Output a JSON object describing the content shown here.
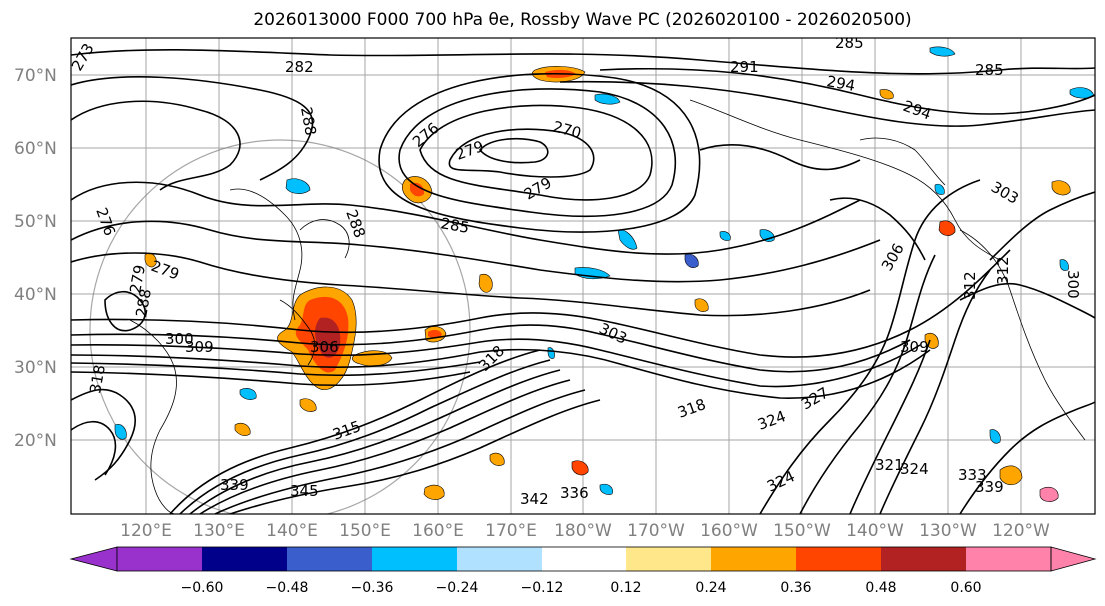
{
  "title": "2026013000 F000 700 hPa θe, Rossby Wave PC (2026020100 - 2026020500)",
  "map": {
    "lat_labels": [
      "70°N",
      "60°N",
      "50°N",
      "40°N",
      "30°N",
      "20°N"
    ],
    "lon_labels": [
      "120°E",
      "130°E",
      "140°E",
      "150°E",
      "160°E",
      "170°E",
      "180°W",
      "170°W",
      "160°W",
      "150°W",
      "140°W",
      "130°W",
      "120°W"
    ],
    "contour_labels": [
      {
        "text": "273"
      },
      {
        "text": "282"
      },
      {
        "text": "285"
      },
      {
        "text": "291"
      },
      {
        "text": "294"
      },
      {
        "text": "285"
      },
      {
        "text": "294"
      },
      {
        "text": "288"
      },
      {
        "text": "279"
      },
      {
        "text": "276"
      },
      {
        "text": "270"
      },
      {
        "text": "279"
      },
      {
        "text": "285"
      },
      {
        "text": "288"
      },
      {
        "text": "303"
      },
      {
        "text": "279"
      },
      {
        "text": "276"
      },
      {
        "text": "279"
      },
      {
        "text": "288"
      },
      {
        "text": "300"
      },
      {
        "text": "309"
      },
      {
        "text": "312"
      },
      {
        "text": "300"
      },
      {
        "text": "306"
      },
      {
        "text": "309"
      },
      {
        "text": "303"
      },
      {
        "text": "312"
      },
      {
        "text": "306"
      },
      {
        "text": "318"
      },
      {
        "text": "318"
      },
      {
        "text": "315"
      },
      {
        "text": "318"
      },
      {
        "text": "324"
      },
      {
        "text": "327"
      },
      {
        "text": "324"
      },
      {
        "text": "321"
      },
      {
        "text": "324"
      },
      {
        "text": "333"
      },
      {
        "text": "339"
      },
      {
        "text": "345"
      },
      {
        "text": "336"
      },
      {
        "text": "339"
      },
      {
        "text": "342"
      }
    ],
    "colors": {
      "contour": "#000000",
      "grid": "#808080",
      "coast": "#000000"
    }
  },
  "colorbar": {
    "ticks": [
      "−0.60",
      "−0.48",
      "−0.36",
      "−0.24",
      "−0.12",
      "0.12",
      "0.24",
      "0.36",
      "0.48",
      "0.60"
    ],
    "bins": [
      {
        "color": "#9932cc"
      },
      {
        "color": "#00008b"
      },
      {
        "color": "#3a5fcd"
      },
      {
        "color": "#00bfff"
      },
      {
        "color": "#b0e2ff"
      },
      {
        "color": "#ffffff"
      },
      {
        "color": "#ffe78a"
      },
      {
        "color": "#ffa500"
      },
      {
        "color": "#ff4500"
      },
      {
        "color": "#b22222"
      },
      {
        "color": "#ff82ab"
      }
    ]
  }
}
